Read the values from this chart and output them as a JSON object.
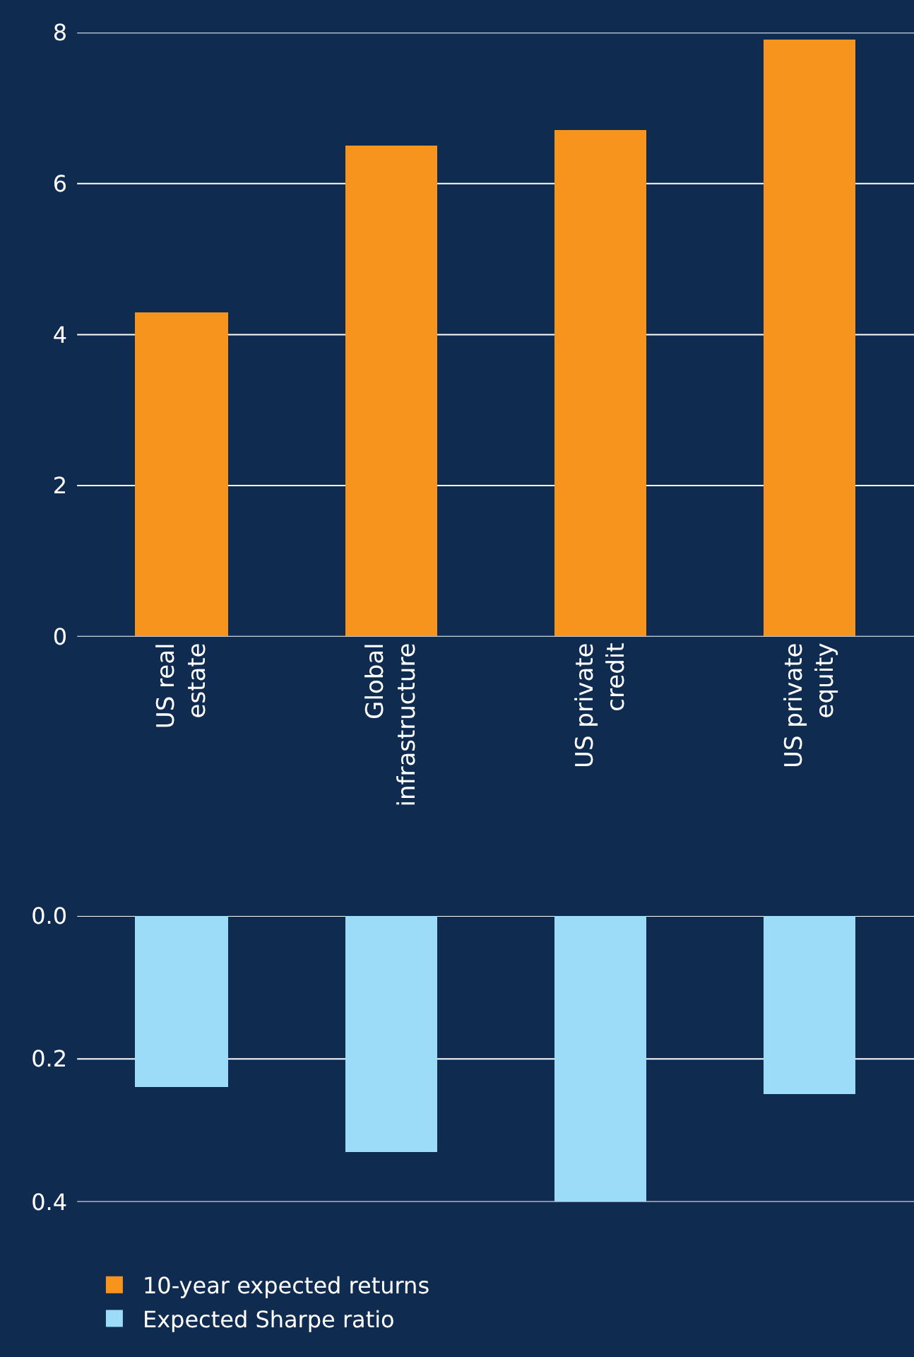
{
  "chart_data": [
    {
      "type": "bar",
      "categories": [
        "US real estate",
        "Global infrastructure",
        "US private credit",
        "US private equity"
      ],
      "series": [
        {
          "name": "10-year expected returns",
          "color": "#f7941d",
          "values": [
            4.3,
            6.5,
            6.7,
            7.9
          ]
        }
      ],
      "ylim": [
        0,
        8
      ],
      "yticks": [
        0,
        2,
        4,
        6,
        8
      ],
      "grid": "y",
      "legend": "bottom"
    },
    {
      "type": "bar",
      "categories": [
        null,
        null,
        null,
        null
      ],
      "series": [
        {
          "name": "Expected Sharpe ratio",
          "color": "#9ddcf9",
          "values": [
            0.24,
            0.33,
            0.4,
            0.25
          ]
        }
      ],
      "ylim": [
        0.4,
        0
      ],
      "yticks": [
        {
          "value": 0,
          "label": "0.0"
        },
        {
          "value": 0.2,
          "label": "0.2"
        },
        {
          "value": 0.4,
          "label": "0.4"
        }
      ],
      "grid": "y",
      "legend": "bottom",
      "tick_labels": "y"
    }
  ]
}
